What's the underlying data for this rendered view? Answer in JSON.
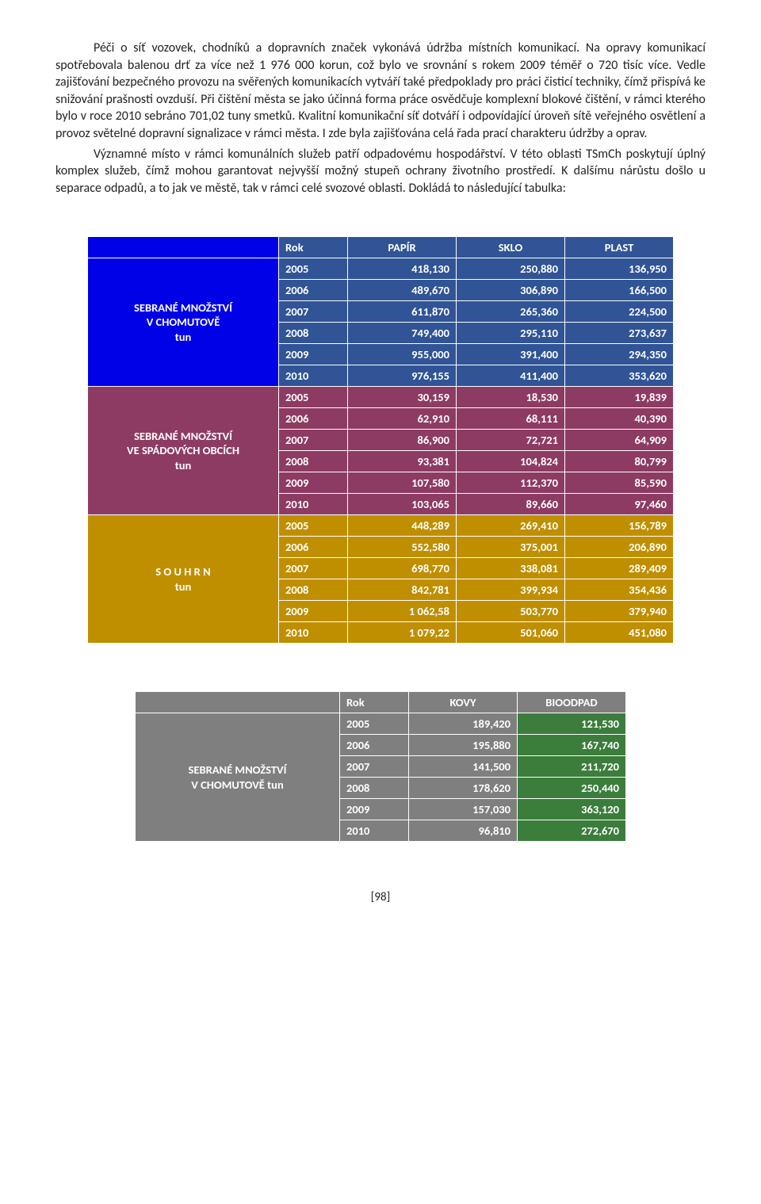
{
  "paragraphs": {
    "p1": "Péči o síť vozovek, chodníků a dopravních značek vykonává údržba místních komunikací. Na opravy komunikací spotřebovala balenou drť za více než 1 976 000 korun, což bylo ve srovnání s rokem 2009 téměř o 720 tisíc více. Vedle zajišťování bezpečného provozu na svěřených komunikacích vytváří také předpoklady pro práci čisticí techniky, čímž přispívá ke snižování prašnosti ovzduší. Při čištění města se jako účinná forma práce osvědčuje komplexní blokové čištění, v rámci kterého bylo v roce 2010 sebráno 701,02 tuny smetků. Kvalitní komunikační síť dotváří i odpovídající úroveň sítě veřejného osvětlení a provoz světelné dopravní signalizace v rámci města. I zde byla zajišťována celá řada prací charakteru údržby a oprav.",
    "p2": "Významné místo v rámci komunálních služeb patří odpadovému hospodářství. V této oblasti TSmCh poskytují úplný komplex služeb, čímž mohou garantovat nejvyšší možný stupeň ochrany životního prostředí. K dalšímu nárůstu došlo u separace odpadů, a to jak ve městě, tak v rámci celé svozové oblasti. Dokládá to následující tabulka:"
  },
  "table1": {
    "head": {
      "c0_bg": "#0101e7",
      "c1": "Rok",
      "c2": "PAPÍR",
      "c3": "SKLO",
      "c4": "PLAST",
      "row_bg": "#305496"
    },
    "groups": [
      {
        "label_l1": "SEBRANÉ MNOŽSTVÍ",
        "label_l2": "V CHOMUTOVĚ",
        "label_l3": "tun",
        "label_bg": "#0101e7",
        "row_bg": "#305496",
        "rows": [
          {
            "y": "2005",
            "a": "418,130",
            "b": "250,880",
            "c": "136,950"
          },
          {
            "y": "2006",
            "a": "489,670",
            "b": "306,890",
            "c": "166,500"
          },
          {
            "y": "2007",
            "a": "611,870",
            "b": "265,360",
            "c": "224,500"
          },
          {
            "y": "2008",
            "a": "749,400",
            "b": "295,110",
            "c": "273,637"
          },
          {
            "y": "2009",
            "a": "955,000",
            "b": "391,400",
            "c": "294,350"
          },
          {
            "y": "2010",
            "a": "976,155",
            "b": "411,400",
            "c": "353,620"
          }
        ]
      },
      {
        "label_l1": "SEBRANÉ MNOŽSTVÍ",
        "label_l2": "VE SPÁDOVÝCH OBCÍCH",
        "label_l3": "tun",
        "label_bg": "#8d3b62",
        "row_bg": "#8d3b62",
        "rows": [
          {
            "y": "2005",
            "a": "30,159",
            "b": "18,530",
            "c": "19,839"
          },
          {
            "y": "2006",
            "a": "62,910",
            "b": "68,111",
            "c": "40,390"
          },
          {
            "y": "2007",
            "a": "86,900",
            "b": "72,721",
            "c": "64,909"
          },
          {
            "y": "2008",
            "a": "93,381",
            "b": "104,824",
            "c": "80,799"
          },
          {
            "y": "2009",
            "a": "107,580",
            "b": "112,370",
            "c": "85,590"
          },
          {
            "y": "2010",
            "a": "103,065",
            "b": "89,660",
            "c": "97,460"
          }
        ]
      },
      {
        "label_l1": "S O U H R N",
        "label_l2": "tun",
        "label_l3": "",
        "label_bg": "#bf8f00",
        "row_bg": "#bf8f00",
        "rows": [
          {
            "y": "2005",
            "a": "448,289",
            "b": "269,410",
            "c": "156,789"
          },
          {
            "y": "2006",
            "a": "552,580",
            "b": "375,001",
            "c": "206,890"
          },
          {
            "y": "2007",
            "a": "698,770",
            "b": "338,081",
            "c": "289,409"
          },
          {
            "y": "2008",
            "a": "842,781",
            "b": "399,934",
            "c": "354,436"
          },
          {
            "y": "2009",
            "a": "1 062,58",
            "b": "503,770",
            "c": "379,940"
          },
          {
            "y": "2010",
            "a": "1 079,22",
            "b": "501,060",
            "c": "451,080"
          }
        ]
      }
    ]
  },
  "table2": {
    "head": {
      "c0_bg": "#7f7f7f",
      "c1": "Rok",
      "c2": "KOVY",
      "c3": "BIOODPAD",
      "row_bg": "#7f7f7f"
    },
    "group": {
      "label_l1": "SEBRANÉ MNOŽSTVÍ",
      "label_l2": "V CHOMUTOVĚ tun",
      "label_bg": "#7f7f7f",
      "rows": [
        {
          "y": "2005",
          "a": "189,420",
          "b": "121,530"
        },
        {
          "y": "2006",
          "a": "195,880",
          "b": "167,740"
        },
        {
          "y": "2007",
          "a": "141,500",
          "b": "211,720"
        },
        {
          "y": "2008",
          "a": "178,620",
          "b": "250,440"
        },
        {
          "y": "2009",
          "a": "157,030",
          "b": "363,120"
        },
        {
          "y": "2010",
          "a": "96,810",
          "b": "272,670"
        }
      ],
      "year_bg": "#7f7f7f",
      "col_a_bg": "#7f7f7f",
      "col_b_bg": "#3b7d3b"
    }
  },
  "pagenum": "[98]"
}
